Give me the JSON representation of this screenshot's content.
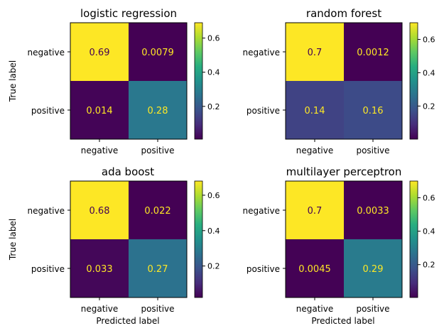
{
  "chart_data": [
    {
      "type": "heatmap",
      "title": "logistic regression",
      "rows": [
        "negative",
        "positive"
      ],
      "cols": [
        "negative",
        "positive"
      ],
      "values": [
        [
          0.69,
          0.0079
        ],
        [
          0.014,
          0.28
        ]
      ],
      "labels": [
        [
          "0.69",
          "0.0079"
        ],
        [
          "0.014",
          "0.28"
        ]
      ],
      "xlabel": "",
      "ylabel": "True label",
      "colorbar": {
        "ticks": [
          "0.6",
          "0.4",
          "0.2"
        ],
        "tick_values": [
          0.6,
          0.4,
          0.2
        ],
        "range": [
          0.0079,
          0.69
        ]
      }
    },
    {
      "type": "heatmap",
      "title": "random forest",
      "rows": [
        "negative",
        "positive"
      ],
      "cols": [
        "negative",
        "positive"
      ],
      "values": [
        [
          0.7,
          0.0012
        ],
        [
          0.14,
          0.16
        ]
      ],
      "labels": [
        [
          "0.7",
          "0.0012"
        ],
        [
          "0.14",
          "0.16"
        ]
      ],
      "xlabel": "",
      "ylabel": "",
      "colorbar": {
        "ticks": [
          "0.6",
          "0.4",
          "0.2"
        ],
        "tick_values": [
          0.6,
          0.4,
          0.2
        ],
        "range": [
          0.0012,
          0.7
        ]
      }
    },
    {
      "type": "heatmap",
      "title": "ada boost",
      "rows": [
        "negative",
        "positive"
      ],
      "cols": [
        "negative",
        "positive"
      ],
      "values": [
        [
          0.68,
          0.022
        ],
        [
          0.033,
          0.27
        ]
      ],
      "labels": [
        [
          "0.68",
          "0.022"
        ],
        [
          "0.033",
          "0.27"
        ]
      ],
      "xlabel": "Predicted label",
      "ylabel": "True label",
      "colorbar": {
        "ticks": [
          "0.6",
          "0.4",
          "0.2"
        ],
        "tick_values": [
          0.6,
          0.4,
          0.2
        ],
        "range": [
          0.022,
          0.68
        ]
      }
    },
    {
      "type": "heatmap",
      "title": "multilayer perceptron",
      "rows": [
        "negative",
        "positive"
      ],
      "cols": [
        "negative",
        "positive"
      ],
      "values": [
        [
          0.7,
          0.0033
        ],
        [
          0.0045,
          0.29
        ]
      ],
      "labels": [
        [
          "0.7",
          "0.0033"
        ],
        [
          "0.0045",
          "0.29"
        ]
      ],
      "xlabel": "Predicted label",
      "ylabel": "",
      "colorbar": {
        "ticks": [
          "0.6",
          "0.4",
          "0.2"
        ],
        "tick_values": [
          0.6,
          0.4,
          0.2
        ],
        "range": [
          0.0033,
          0.7
        ]
      }
    }
  ]
}
